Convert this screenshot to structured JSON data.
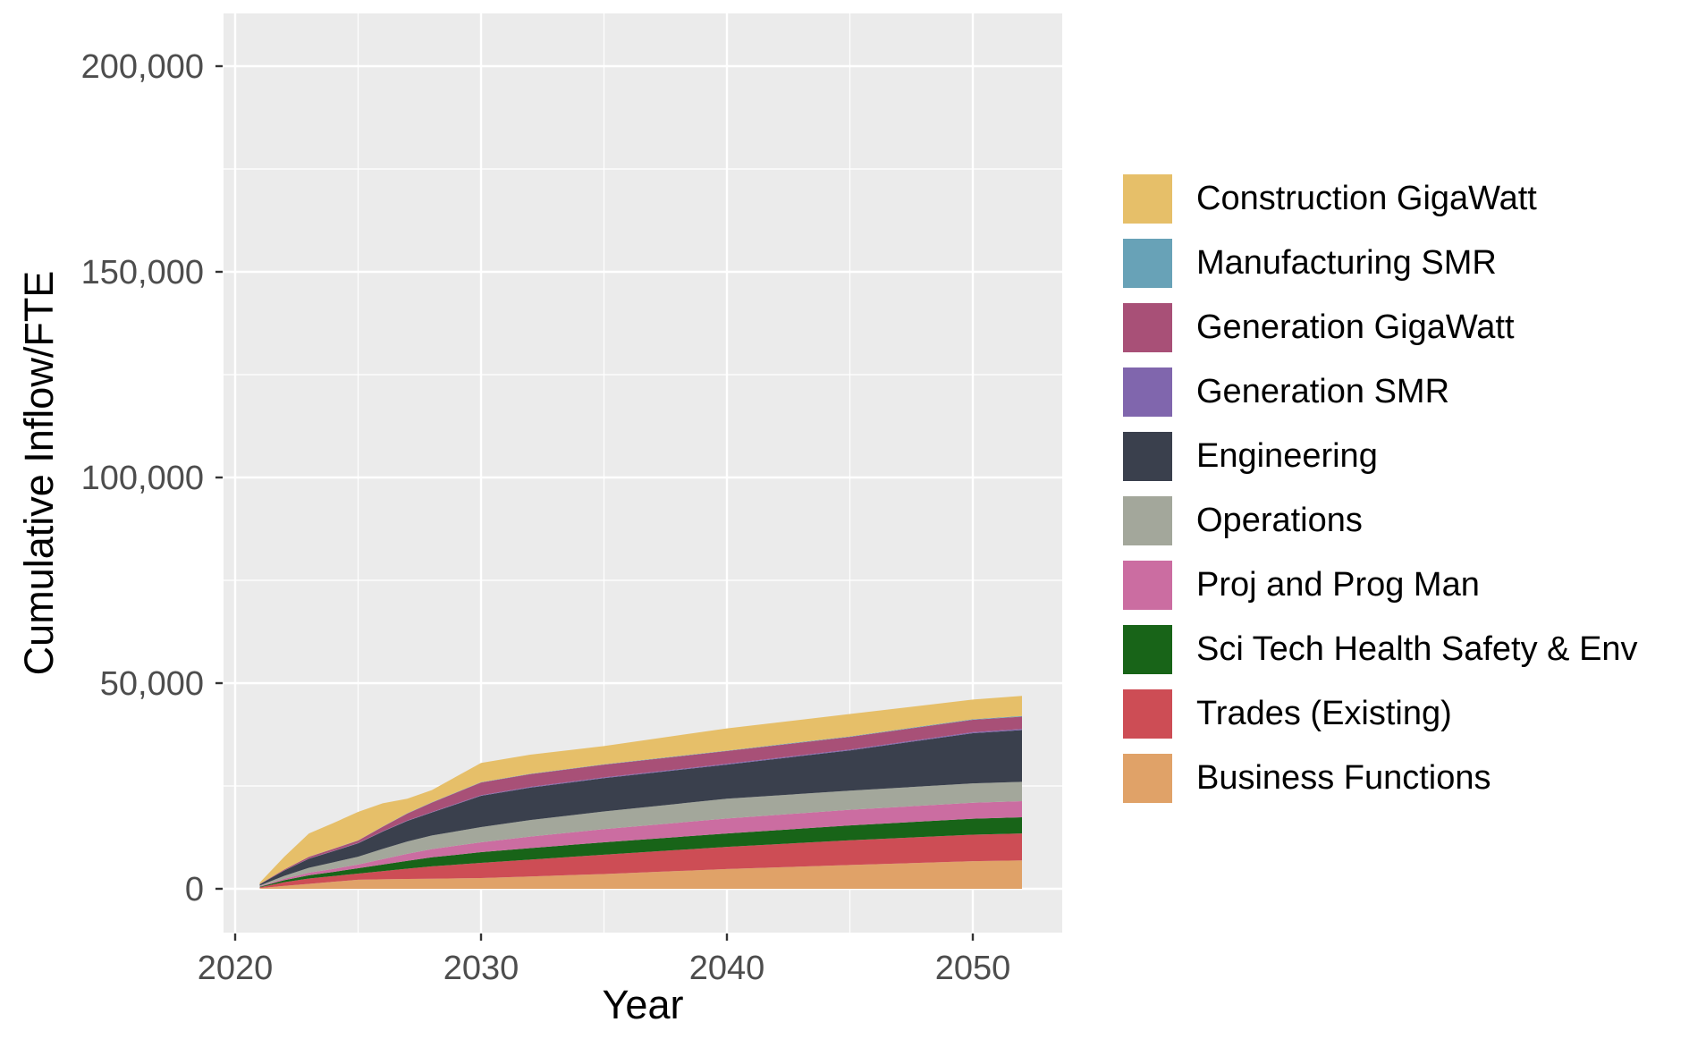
{
  "styles": {
    "panel_background": "#ebebeb",
    "grid_color": "#ffffff",
    "tick_mark_color": "#333333",
    "tick_label_color": "#4d4d4d",
    "text_color": "#000000"
  },
  "chart_data": {
    "type": "area",
    "stacked": true,
    "title": "",
    "xlabel": "Year",
    "ylabel": "Cumulative Inflow/FTE",
    "legend_position": "right",
    "grid": true,
    "x_axis": {
      "major_ticks": [
        2020,
        2030,
        2040,
        2050
      ],
      "major_labels": [
        "2020",
        "2030",
        "2040",
        "2050"
      ],
      "minor_ticks": [
        2025,
        2035,
        2045
      ],
      "range": [
        2019.5,
        2053.6
      ]
    },
    "y_axis": {
      "major_ticks": [
        0,
        50000,
        100000,
        150000,
        200000
      ],
      "major_labels": [
        "0",
        "50,000",
        "100,000",
        "150,000",
        "200,000"
      ],
      "minor_ticks": [
        25000,
        75000,
        125000,
        175000
      ],
      "range": [
        -10700,
        212400
      ]
    },
    "x": [
      2021,
      2022,
      2023,
      2024,
      2025,
      2026,
      2027,
      2028,
      2030,
      2032,
      2035,
      2040,
      2045,
      2050,
      2052
    ],
    "series": [
      {
        "name": "Business Functions",
        "color": "#e0a268",
        "values": [
          150,
          700,
          1200,
          1700,
          2200,
          2300,
          2400,
          2450,
          2600,
          3000,
          3600,
          4800,
          5800,
          6700,
          6900
        ]
      },
      {
        "name": "Trades (Existing)",
        "color": "#cd4d55",
        "values": [
          200,
          900,
          1300,
          1400,
          1500,
          2000,
          2500,
          3000,
          3700,
          4100,
          4700,
          5400,
          6000,
          6450,
          6550
        ]
      },
      {
        "name": "Sci Tech Health Safety & Env",
        "color": "#186418",
        "values": [
          150,
          500,
          800,
          1000,
          1300,
          1600,
          1900,
          2200,
          2600,
          2800,
          3000,
          3250,
          3600,
          3900,
          3950
        ]
      },
      {
        "name": "Proj and Prog Man",
        "color": "#cb6da1",
        "values": [
          100,
          350,
          600,
          750,
          900,
          1300,
          1700,
          2000,
          2400,
          2800,
          3200,
          3650,
          3800,
          3880,
          3900
        ]
      },
      {
        "name": "Operations",
        "color": "#a3a79b",
        "values": [
          200,
          700,
          1200,
          1600,
          1900,
          2500,
          3000,
          3300,
          3700,
          4000,
          4300,
          4800,
          4650,
          4700,
          4700
        ]
      },
      {
        "name": "Engineering",
        "color": "#3a404d",
        "values": [
          300,
          1300,
          2200,
          2700,
          3250,
          4200,
          5000,
          5600,
          7600,
          7900,
          8100,
          8300,
          9800,
          12200,
          12600
        ]
      },
      {
        "name": "Generation SMR",
        "color": "#8066ad",
        "values": [
          20,
          40,
          60,
          70,
          80,
          90,
          100,
          110,
          150,
          170,
          180,
          200,
          220,
          250,
          250
        ]
      },
      {
        "name": "Generation GigaWatt",
        "color": "#a85077",
        "values": [
          50,
          200,
          400,
          500,
          600,
          1100,
          1700,
          2300,
          3100,
          3100,
          3100,
          3100,
          3050,
          3000,
          3000
        ]
      },
      {
        "name": "Manufacturing SMR",
        "color": "#68a2b7",
        "values": [
          10,
          20,
          30,
          40,
          40,
          50,
          60,
          70,
          80,
          90,
          100,
          100,
          130,
          150,
          150
        ]
      },
      {
        "name": "Construction GigaWatt",
        "color": "#e6bf69",
        "values": [
          320,
          3090,
          5660,
          6240,
          6930,
          5660,
          3540,
          2970,
          4670,
          4640,
          4420,
          5400,
          5450,
          4770,
          4900
        ]
      }
    ]
  }
}
